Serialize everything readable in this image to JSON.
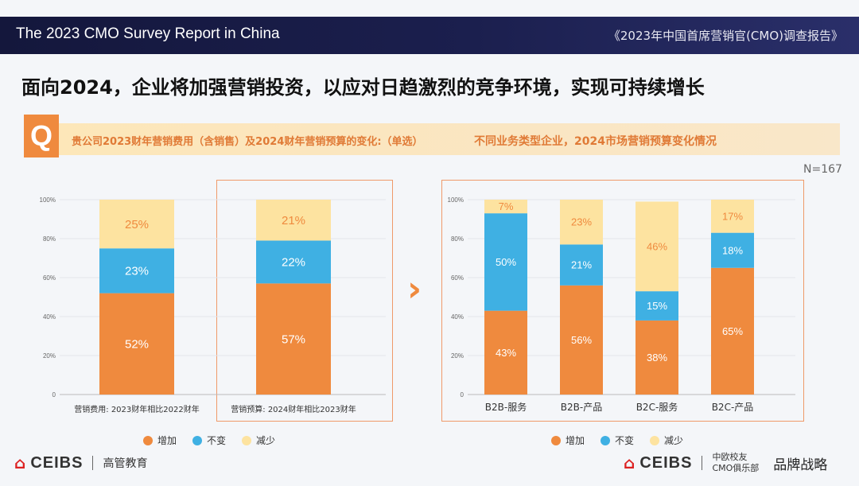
{
  "header": {
    "title_en": "The 2023 CMO Survey Report in China",
    "title_cn": "《2023年中国首席营销官(CMO)调查报告》"
  },
  "page_title": "面向2024，企业将加强营销投资，以应对日趋激烈的竞争环境，实现可持续增长",
  "question": {
    "badge": "Q",
    "text": "贵公司2023财年营销费用（含销售）及2024财年营销预算的变化:（单选）",
    "right_text": "不同业务类型企业，2024市场营销预算变化情况"
  },
  "sample_size": "N=167",
  "legend": [
    "增加",
    "不变",
    "减少"
  ],
  "colors": {
    "increase": "#ef8a3e",
    "same": "#3fb0e3",
    "decrease": "#fde3a0",
    "frame": "#ef9a6a",
    "label_dark": "#ef8a3e"
  },
  "chart_data": [
    {
      "type": "bar",
      "stacked": true,
      "categories": [
        "营销费用: 2023财年相比2022财年",
        "营销预算: 2024财年相比2023财年"
      ],
      "series": [
        {
          "name": "增加",
          "values": [
            52,
            57
          ]
        },
        {
          "name": "不变",
          "values": [
            23,
            22
          ]
        },
        {
          "name": "减少",
          "values": [
            25,
            21
          ]
        }
      ],
      "ylim": [
        0,
        100
      ],
      "yticks": [
        "0",
        "20%",
        "40%",
        "60%",
        "80%",
        "100%"
      ]
    },
    {
      "type": "bar",
      "stacked": true,
      "categories": [
        "B2B-服务",
        "B2B-产品",
        "B2C-服务",
        "B2C-产品"
      ],
      "series": [
        {
          "name": "增加",
          "values": [
            43,
            56,
            38,
            65
          ]
        },
        {
          "name": "不变",
          "values": [
            50,
            21,
            15,
            18
          ]
        },
        {
          "name": "减少",
          "values": [
            7,
            23,
            46,
            17
          ]
        }
      ],
      "ylim": [
        0,
        100
      ],
      "yticks": [
        "0",
        "20%",
        "40%",
        "60%",
        "80%",
        "100%"
      ]
    }
  ],
  "footer": {
    "left_logo": "CEIBS",
    "left_text": "高管教育",
    "right_logo": "CEIBS",
    "club_line1": "中欧校友",
    "club_line2": "CMO俱乐部",
    "brand": "品牌战略"
  }
}
